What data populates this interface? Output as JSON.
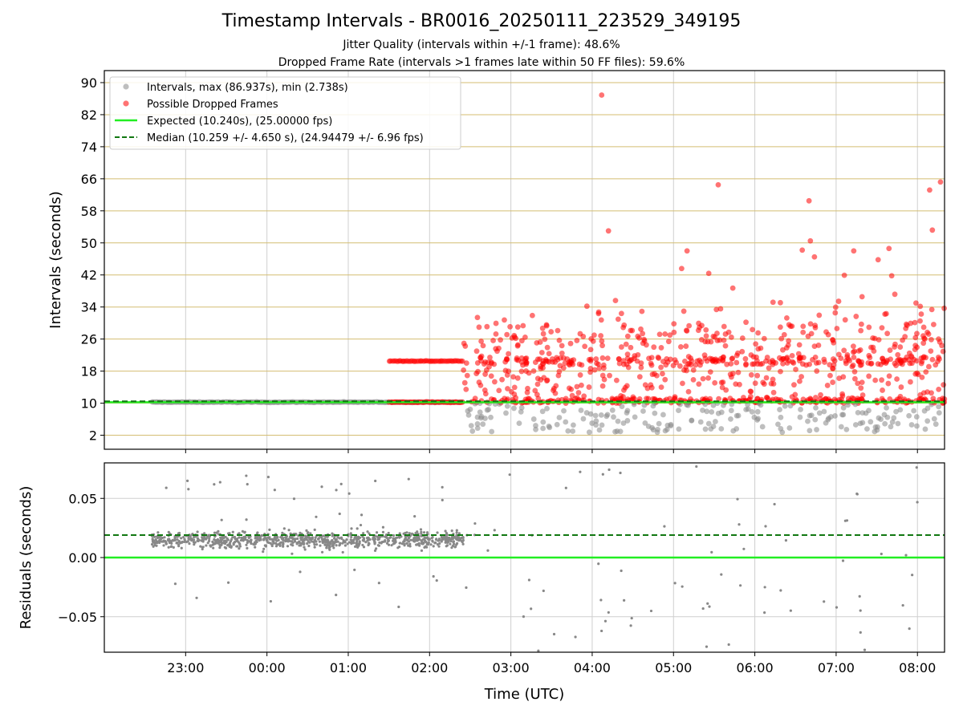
{
  "chart_title": "Timestamp Intervals - BR0016_20250111_223529_349195",
  "subtitle_jitter": "Jitter Quality (intervals within +/-1 frame): 48.6%",
  "subtitle_dropped": "Dropped Frame Rate (intervals >1 frames late within 50 FF files): 59.6%",
  "colors": {
    "intervals": "#888888",
    "dropped": "#ff0000",
    "expected": "#22ee22",
    "median": "#117711",
    "hgrid": "#d4bd72",
    "vgrid": "#cfcfcf"
  },
  "chart_data": [
    {
      "type": "scatter",
      "ylabel": "Intervals (seconds)",
      "ylim": [
        -1.5,
        93
      ],
      "yticks": [
        2,
        10,
        18,
        26,
        34,
        42,
        50,
        58,
        66,
        74,
        82,
        90
      ],
      "grid": true,
      "legend_position": "top-left",
      "series": [
        {
          "name": "Intervals, max (86.937s), min (2.738s)",
          "marker": "circle"
        },
        {
          "name": "Possible Dropped Frames",
          "marker": "circle"
        },
        {
          "name": "Expected (10.240s), (25.00000 fps)",
          "value": 10.24,
          "style": "solid-line"
        },
        {
          "name": "Median (10.259 +/- 4.650 s), (24.94479 +/- 6.96 fps)",
          "value": 10.259,
          "style": "dashed-line"
        }
      ],
      "segments_note_free": true,
      "clusters": [
        {
          "from": "22:35",
          "to": "02:25",
          "series": "intervals",
          "y": 10.25
        },
        {
          "from": "01:30",
          "to": "02:25",
          "series": "dropped",
          "y": 10.25
        },
        {
          "from": "01:30",
          "to": "02:25",
          "series": "dropped",
          "y": 20.5
        }
      ],
      "scatter_ranges": [
        {
          "from": "02:25",
          "to": "08:20",
          "series": "dropped",
          "ymin": 10,
          "ymax": 42
        },
        {
          "from": "02:25",
          "to": "08:20",
          "series": "intervals",
          "ymin": 2.7,
          "ymax": 10
        }
      ],
      "outliers": [
        {
          "x": "04:07",
          "y": 86.9
        },
        {
          "x": "05:33",
          "y": 64.5
        },
        {
          "x": "06:40",
          "y": 60.5
        },
        {
          "x": "08:09",
          "y": 63.2
        },
        {
          "x": "08:17",
          "y": 65.2
        },
        {
          "x": "04:12",
          "y": 53
        },
        {
          "x": "08:11",
          "y": 53.2
        },
        {
          "x": "06:41",
          "y": 50.5
        },
        {
          "x": "06:35",
          "y": 48.2
        },
        {
          "x": "07:13",
          "y": 48
        },
        {
          "x": "07:39",
          "y": 48.6
        },
        {
          "x": "05:10",
          "y": 48
        },
        {
          "x": "06:44",
          "y": 46.5
        },
        {
          "x": "07:31",
          "y": 45.8
        },
        {
          "x": "05:06",
          "y": 43.6
        },
        {
          "x": "05:26",
          "y": 42.4
        },
        {
          "x": "07:41",
          "y": 41.8
        }
      ]
    },
    {
      "type": "scatter",
      "xlabel": "Time (UTC)",
      "ylabel": "Residuals (seconds)",
      "ylim": [
        -0.08,
        0.08
      ],
      "yticks": [
        -0.05,
        0.0,
        0.05
      ],
      "ytick_labels": [
        "−0.05",
        "0.00",
        "0.05"
      ],
      "xticks": [
        "23:00",
        "00:00",
        "01:00",
        "02:00",
        "03:00",
        "04:00",
        "05:00",
        "06:00",
        "07:00",
        "08:00"
      ],
      "xlim": [
        "22:00",
        "08:20"
      ],
      "grid": true,
      "series": [
        {
          "name": "residuals",
          "marker": "point"
        },
        {
          "name": "zero",
          "value": 0.0,
          "style": "solid-line"
        },
        {
          "name": "median",
          "value": 0.019,
          "style": "dashed-line"
        }
      ],
      "clusters": [
        {
          "from": "22:35",
          "to": "02:25",
          "center": 0.015,
          "spread": 0.012
        }
      ],
      "sparse_range": {
        "from": "02:25",
        "to": "08:20",
        "ymin": -0.08,
        "ymax": 0.08
      }
    }
  ]
}
